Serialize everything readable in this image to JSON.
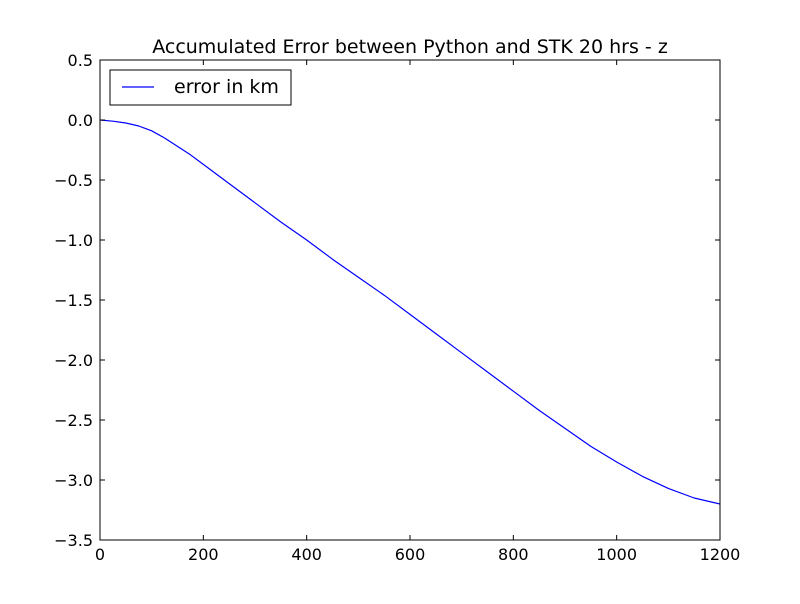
{
  "chart_data": {
    "type": "line",
    "title": "Accumulated Error between Python and STK 20 hrs - z",
    "xlabel": "",
    "ylabel": "",
    "xlim": [
      0,
      1200
    ],
    "ylim": [
      -3.5,
      0.5
    ],
    "xticks": [
      0,
      200,
      400,
      600,
      800,
      1000,
      1200
    ],
    "yticks": [
      0.5,
      0.0,
      -0.5,
      -1.0,
      -1.5,
      -2.0,
      -2.5,
      -3.0,
      -3.5
    ],
    "xtick_labels": [
      "0",
      "200",
      "400",
      "600",
      "800",
      "1000",
      "1200"
    ],
    "ytick_labels": [
      "0.5",
      "0.0",
      "−0.5",
      "−1.0",
      "−1.5",
      "−2.0",
      "−2.5",
      "−3.0",
      "−3.5"
    ],
    "grid": false,
    "legend_position": "upper-left",
    "series": [
      {
        "name": "error in km",
        "color": "#0000ff",
        "x": [
          0,
          25,
          50,
          75,
          100,
          125,
          150,
          175,
          200,
          250,
          300,
          350,
          400,
          450,
          500,
          550,
          600,
          650,
          700,
          750,
          800,
          850,
          900,
          950,
          1000,
          1050,
          1100,
          1150,
          1200
        ],
        "y": [
          0.0,
          -0.01,
          -0.025,
          -0.05,
          -0.09,
          -0.15,
          -0.22,
          -0.29,
          -0.37,
          -0.53,
          -0.69,
          -0.85,
          -1.0,
          -1.16,
          -1.31,
          -1.46,
          -1.62,
          -1.78,
          -1.94,
          -2.1,
          -2.26,
          -2.42,
          -2.57,
          -2.72,
          -2.85,
          -2.97,
          -3.07,
          -3.15,
          -3.2
        ]
      }
    ]
  }
}
